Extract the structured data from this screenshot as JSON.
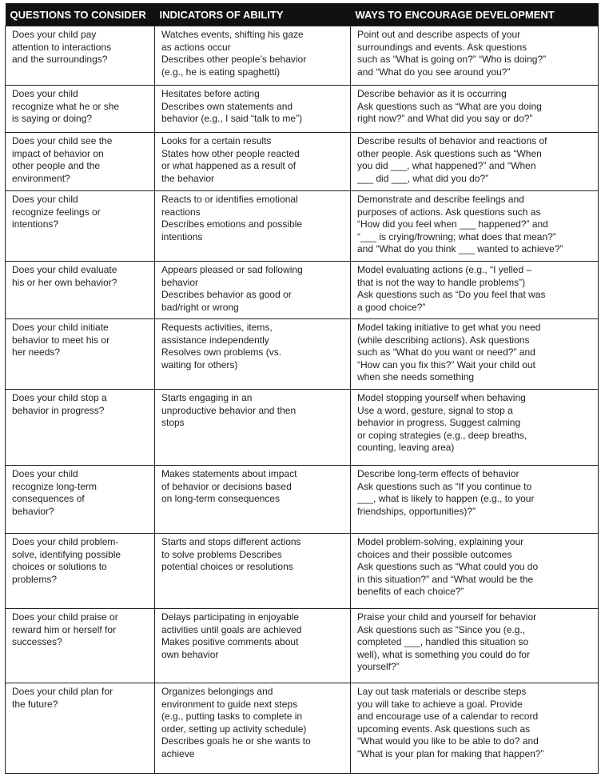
{
  "table": {
    "header": [
      "QUESTIONS TO CONSIDER",
      "INDICATORS OF ABILITY",
      "WAYS TO ENCOURAGE DEVELOPMENT"
    ],
    "rows": [
      [
        [
          "Does your child pay",
          "attention to interactions",
          "and the surroundings?"
        ],
        [
          "Watches events, shifting his gaze",
          "as actions occur",
          "Describes other people’s behavior",
          "(e.g., he is eating spaghetti)"
        ],
        [
          "Point out and describe aspects of your",
          "surroundings and events. Ask questions",
          "such as “What is going on?” “Who is doing?”",
          "and “What do you see around you?”"
        ]
      ],
      [
        [
          "Does your child",
          "recognize what he or she",
          "is saying or doing?"
        ],
        [
          "Hesitates before acting",
          "Describes own statements and",
          "behavior (e.g., I said “talk to me”)"
        ],
        [
          "Describe behavior as it is occurring",
          "Ask questions such as “What are you doing",
          "right now?” and What did you say or do?”"
        ]
      ],
      [
        [
          "Does your child see the",
          "impact of behavior on",
          "other people and the",
          "environment?"
        ],
        [
          "Looks for a certain results",
          "States how other people reacted",
          "or what happened as a result of",
          "the behavior"
        ],
        [
          "Describe results of behavior and reactions of",
          "other people. Ask questions such as “When",
          "you did ___, what happened?” and “When",
          "___ did ___, what did you do?”"
        ]
      ],
      [
        [
          "Does your child",
          "recognize feelings or",
          "intentions?"
        ],
        [
          "Reacts to or identifies emotional",
          "reactions",
          "Describes emotions and possible",
          "intentions"
        ],
        [
          "Demonstrate and describe feelings and",
          "purposes of actions. Ask questions such as",
          "“How did you feel when ___ happened?” and",
          "“___ is crying/frowning; what does that mean?”",
          "and “What do you think ___ wanted to achieve?”"
        ]
      ],
      [
        [
          "Does your child evaluate",
          "his or her own behavior?"
        ],
        [
          "Appears pleased or sad following",
          "behavior",
          "Describes behavior as good or",
          "bad/right or wrong"
        ],
        [
          "Model evaluating actions (e.g., “I yelled –",
          "that is not the way to handle problems”)",
          "Ask questions such as “Do you feel that was",
          "a good choice?”"
        ]
      ],
      [
        [
          "Does your child initiate",
          "behavior to meet his or",
          "her needs?"
        ],
        [
          "Requests activities, items,",
          "assistance independently",
          "Resolves own problems (vs.",
          "waiting for others)"
        ],
        [
          "Model taking initiative to get what you need",
          "(while describing actions). Ask questions",
          "such as “What do you want or need?” and",
          "“How can you fix this?” Wait your child out",
          "when she needs something"
        ]
      ],
      [
        [
          "Does your child stop a",
          "behavior in progress?"
        ],
        [
          "Starts engaging in an",
          "unproductive behavior and then",
          "stops"
        ],
        [
          "Model stopping yourself when behaving",
          "Use a word, gesture, signal to stop a",
          "behavior in progress. Suggest calming",
          "or coping strategies (e.g., deep breaths,",
          "counting, leaving area)"
        ]
      ],
      [
        [
          "Does your child",
          "recognize long-term",
          "consequences of",
          "behavior?"
        ],
        [
          "Makes statements about impact",
          "of behavior or decisions based",
          "on long-term consequences"
        ],
        [
          "Describe long-term effects of behavior",
          "Ask questions such as “If you continue to",
          "___, what is likely to happen (e.g., to your",
          "friendships, opportunities)?”"
        ]
      ],
      [
        [
          "Does your child problem-",
          "solve, identifying possible",
          "choices or solutions to",
          "problems?"
        ],
        [
          "Starts and stops different actions",
          "to solve problems Describes",
          "potential choices or resolutions"
        ],
        [
          "Model problem-solving, explaining your",
          "choices and their possible outcomes",
          "Ask questions such as “What could you do",
          "in this situation?” and “What would be the",
          "benefits of each choice?”"
        ]
      ],
      [
        [
          "Does your child praise or",
          "reward him or herself for",
          "successes?"
        ],
        [
          "Delays participating in enjoyable",
          "activities until goals are achieved",
          "Makes positive comments about",
          "own behavior"
        ],
        [
          "Praise your child and yourself for behavior",
          "Ask questions such as “Since you (e.g.,",
          "completed ___, handled this situation so",
          "well), what is something you could do for",
          "yourself?”"
        ]
      ],
      [
        [
          "Does your child plan for",
          "the future?"
        ],
        [
          "Organizes belongings and",
          "environment to guide next steps",
          "(e.g., putting tasks to complete in",
          "order, setting up activity schedule)",
          "Describes goals he or she wants to",
          "achieve"
        ],
        [
          "Lay out task materials or describe steps",
          "you will take to achieve a goal. Provide",
          "and encourage use of a calendar to record",
          "upcoming events. Ask questions such as",
          "“What would you like to be able to do? and",
          "“What is your plan for making that happen?”"
        ]
      ]
    ]
  }
}
